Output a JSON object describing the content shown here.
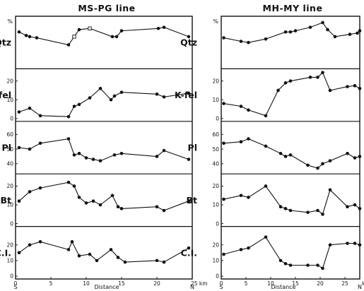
{
  "chart_data": [
    {
      "type": "line",
      "title": "MS-PG line",
      "xlabel": "Distance",
      "x_ticks": [
        "0",
        "5",
        "10",
        "15",
        "20",
        "25 km"
      ],
      "xlim": [
        0,
        25
      ],
      "end_labels": {
        "left": "S",
        "right": "N"
      },
      "panels": [
        {
          "label": "Qtz",
          "unit": "%",
          "ylim": [
            0,
            40
          ],
          "y_ticks": [],
          "x": [
            0.5,
            1.5,
            2,
            3,
            7.5,
            8.3,
            9,
            10.5,
            13.7,
            14.3,
            15,
            20.2,
            21,
            24.5
          ],
          "y": [
            29,
            26,
            25,
            24,
            18,
            25,
            31,
            32,
            25,
            25,
            30,
            32,
            33,
            25
          ],
          "open_marker_index": [
            5,
            7
          ]
        },
        {
          "label": "K-fel",
          "ylim": [
            0,
            25
          ],
          "y_ticks": [
            "0",
            "10",
            "20"
          ],
          "x": [
            0.5,
            2,
            3.5,
            7.5,
            8.3,
            9,
            10.5,
            12,
            13.5,
            14,
            15,
            20,
            21,
            24.5
          ],
          "y": [
            3.5,
            5.5,
            1.5,
            1,
            6.5,
            7.5,
            11,
            16,
            10,
            12,
            14,
            13,
            11.5,
            13.5
          ]
        },
        {
          "label": "Pl",
          "ylim": [
            35,
            67
          ],
          "y_ticks": [
            "40",
            "50",
            "60"
          ],
          "x": [
            0.5,
            2,
            3.5,
            7.5,
            8.3,
            9,
            10,
            11,
            12,
            14,
            15,
            20,
            21,
            24.5
          ],
          "y": [
            51,
            50,
            54,
            57,
            46,
            47,
            44,
            43,
            42,
            46,
            47,
            45,
            49,
            43
          ]
        },
        {
          "label": "Bt",
          "ylim": [
            0,
            25
          ],
          "y_ticks": [
            "0",
            "10",
            "20"
          ],
          "x": [
            0.5,
            2,
            3.5,
            7.5,
            8.3,
            9,
            10,
            11,
            12,
            13.7,
            14.5,
            15,
            20,
            21,
            24.5
          ],
          "y": [
            12,
            17,
            19,
            22,
            20,
            14,
            11,
            12,
            10,
            15,
            9,
            8,
            9,
            7,
            12
          ]
        },
        {
          "label": "C.I.",
          "ylim": [
            0,
            30
          ],
          "y_ticks": [
            "0",
            "10",
            "20"
          ],
          "x": [
            0.5,
            2,
            3.5,
            7.5,
            8,
            9,
            10.5,
            11.5,
            13.5,
            14.5,
            15.5,
            20,
            21,
            24.5
          ],
          "y": [
            15,
            20,
            22,
            17,
            22,
            13,
            14,
            10,
            17,
            12,
            9,
            10,
            9,
            18
          ]
        }
      ]
    },
    {
      "type": "line",
      "title": "MH-MY line",
      "xlabel": "Distance",
      "x_ticks": [
        "0",
        "5",
        "10",
        "15",
        "20",
        "25",
        "km"
      ],
      "xlim": [
        0,
        28
      ],
      "end_labels": {
        "left": "S",
        "right": "N"
      },
      "panels": [
        {
          "label": "Qtz",
          "unit": "%",
          "ylim": [
            0,
            40
          ],
          "y_ticks": [],
          "x": [
            0.5,
            4,
            5.5,
            9,
            13,
            14,
            15,
            18,
            20.5,
            21.5,
            23,
            26,
            27.5,
            28
          ],
          "y": [
            24,
            21,
            20,
            23,
            29,
            29,
            30,
            33,
            37,
            31,
            25,
            27,
            28,
            30
          ]
        },
        {
          "label": "K-fel",
          "ylim": [
            0,
            25
          ],
          "y_ticks": [
            "0",
            "10",
            "20"
          ],
          "x": [
            0.5,
            4,
            5.5,
            9,
            11.5,
            13,
            14,
            18,
            19.5,
            20.5,
            22,
            25.5,
            27,
            28
          ],
          "y": [
            8,
            6.5,
            4.5,
            1.5,
            15,
            19,
            20,
            22,
            22,
            24.5,
            15,
            17,
            17.5,
            16
          ]
        },
        {
          "label": "Pl",
          "ylim": [
            35,
            67
          ],
          "y_ticks": [
            "40",
            "50",
            "60"
          ],
          "x": [
            0.5,
            4,
            5.5,
            9,
            12,
            13,
            14,
            17.5,
            19.5,
            20.5,
            22,
            25.5,
            27,
            28
          ],
          "y": [
            54,
            55,
            57,
            52,
            47,
            45,
            46,
            39,
            37,
            40,
            42,
            47,
            44,
            45
          ]
        },
        {
          "label": "Bt",
          "ylim": [
            0,
            25
          ],
          "y_ticks": [
            "0",
            "10",
            "20"
          ],
          "x": [
            0.5,
            4,
            5.5,
            9,
            12,
            13,
            14,
            17.5,
            19.5,
            20.5,
            22,
            25.5,
            27,
            28
          ],
          "y": [
            13,
            15,
            14,
            20,
            9,
            8,
            7,
            6,
            7,
            5,
            18,
            9,
            10,
            8
          ]
        },
        {
          "label": "C.I.",
          "ylim": [
            0,
            30
          ],
          "y_ticks": [
            "0",
            "10",
            "20"
          ],
          "x": [
            0.5,
            4,
            5.5,
            9,
            12,
            13,
            14,
            17.5,
            19.5,
            20.5,
            22,
            25.5,
            27,
            28
          ],
          "y": [
            14,
            17,
            18,
            25,
            10,
            8,
            7,
            7,
            7,
            5,
            20,
            21,
            21,
            20
          ]
        }
      ]
    }
  ]
}
